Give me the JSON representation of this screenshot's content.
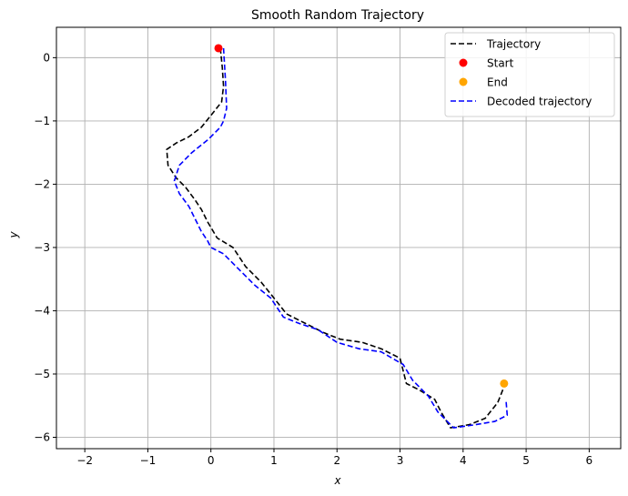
{
  "chart_data": {
    "type": "line",
    "title": "Smooth Random Trajectory",
    "xlabel": "x",
    "ylabel": "y",
    "xlim": [
      -2.45,
      6.5
    ],
    "ylim": [
      -6.18,
      0.48
    ],
    "xticks": [
      -2,
      -1,
      0,
      1,
      2,
      3,
      4,
      5,
      6
    ],
    "yticks": [
      0,
      -1,
      -2,
      -3,
      -4,
      -5,
      -6
    ],
    "grid": true,
    "legend_position": "top-right",
    "series": [
      {
        "name": "Trajectory",
        "style": "dashed",
        "color": "#000000",
        "x": [
          0.15,
          0.18,
          0.2,
          0.17,
          0.05,
          -0.15,
          -0.35,
          -0.55,
          -0.7,
          -0.68,
          -0.55,
          -0.4,
          -0.25,
          -0.15,
          -0.05,
          0.1,
          0.35,
          0.55,
          0.8,
          1.0,
          1.2,
          1.5,
          1.8,
          2.05,
          2.4,
          2.7,
          3.0,
          3.1,
          3.3,
          3.55,
          3.65,
          3.8,
          4.1,
          4.35,
          4.55,
          4.65
        ],
        "y": [
          0.15,
          -0.15,
          -0.45,
          -0.7,
          -0.85,
          -1.1,
          -1.25,
          -1.35,
          -1.45,
          -1.7,
          -1.9,
          -2.05,
          -2.25,
          -2.4,
          -2.6,
          -2.85,
          -3.0,
          -3.3,
          -3.55,
          -3.8,
          -4.05,
          -4.2,
          -4.35,
          -4.45,
          -4.5,
          -4.6,
          -4.75,
          -5.15,
          -5.25,
          -5.4,
          -5.6,
          -5.85,
          -5.8,
          -5.7,
          -5.45,
          -5.2
        ]
      },
      {
        "name": "Start",
        "type": "scatter",
        "color": "#ff0000",
        "x": [
          0.12
        ],
        "y": [
          0.15
        ]
      },
      {
        "name": "End",
        "type": "scatter",
        "color": "#ffa500",
        "x": [
          4.65
        ],
        "y": [
          -5.15
        ]
      },
      {
        "name": "Decoded trajectory",
        "style": "dashed",
        "color": "#0000ff",
        "x": [
          0.2,
          0.23,
          0.25,
          0.2,
          0.15,
          -0.05,
          -0.3,
          -0.5,
          -0.58,
          -0.5,
          -0.35,
          -0.25,
          -0.15,
          -0.05,
          0.0,
          0.2,
          0.45,
          0.7,
          0.95,
          1.15,
          1.4,
          1.7,
          2.0,
          2.35,
          2.7,
          3.05,
          3.2,
          3.45,
          3.6,
          3.7,
          3.85,
          4.2,
          4.5,
          4.7,
          4.68
        ],
        "y": [
          0.15,
          -0.35,
          -0.8,
          -1.0,
          -1.1,
          -1.3,
          -1.5,
          -1.7,
          -1.95,
          -2.15,
          -2.35,
          -2.55,
          -2.75,
          -2.9,
          -3.0,
          -3.1,
          -3.35,
          -3.6,
          -3.8,
          -4.1,
          -4.2,
          -4.3,
          -4.5,
          -4.6,
          -4.65,
          -4.85,
          -5.1,
          -5.35,
          -5.6,
          -5.7,
          -5.85,
          -5.8,
          -5.75,
          -5.65,
          -5.4
        ]
      }
    ]
  }
}
